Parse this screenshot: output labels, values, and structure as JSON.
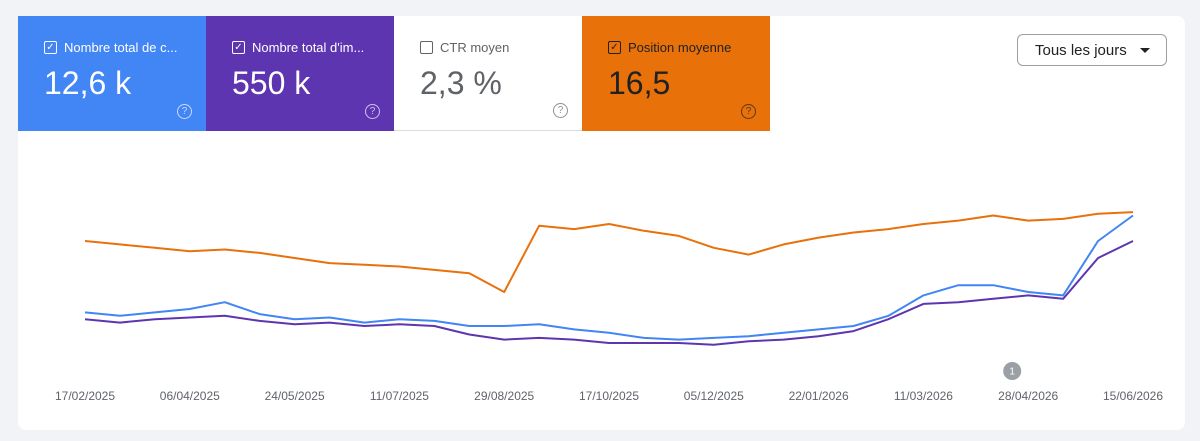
{
  "cards": [
    {
      "label": "Nombre total de c...",
      "value": "12,6 k",
      "checked": true,
      "color": "#4285f4",
      "text_color": "#ffffff"
    },
    {
      "label": "Nombre total d'im...",
      "value": "550 k",
      "checked": true,
      "color": "#5e35b1",
      "text_color": "#ffffff"
    },
    {
      "label": "CTR moyen",
      "value": "2,3 %",
      "checked": false,
      "color": "#ffffff",
      "text_color": "#5f6368"
    },
    {
      "label": "Position moyenne",
      "value": "16,5",
      "checked": true,
      "color": "#e8710a",
      "text_color": "#202124"
    }
  ],
  "filter": "Tous les jours",
  "chart_data": {
    "type": "line",
    "categories": [
      "17/02/2025",
      null,
      null,
      "06/04/2025",
      null,
      null,
      "24/05/2025",
      null,
      null,
      "11/07/2025",
      null,
      null,
      "29/08/2025",
      null,
      null,
      "17/10/2025",
      null,
      null,
      "05/12/2025",
      null,
      null,
      "22/01/2026",
      null,
      null,
      "11/03/2026",
      null,
      null,
      "28/04/2026",
      null,
      null,
      "15/06/2026"
    ],
    "ylim": [
      0,
      100
    ],
    "series": [
      {
        "color": "#e8710a",
        "values": [
          70,
          68,
          66,
          64,
          65,
          63,
          60,
          57,
          56,
          55,
          53,
          51,
          40,
          79,
          77,
          80,
          76,
          73,
          66,
          62,
          68,
          72,
          75,
          77,
          80,
          82,
          85,
          82,
          83,
          86,
          87
        ]
      },
      {
        "color": "#4285f4",
        "values": [
          28,
          26,
          28,
          30,
          34,
          27,
          24,
          25,
          22,
          24,
          23,
          20,
          20,
          21,
          18,
          16,
          13,
          12,
          13,
          14,
          16,
          18,
          20,
          26,
          38,
          44,
          44,
          40,
          38,
          70,
          85
        ]
      },
      {
        "color": "#5e35b1",
        "values": [
          24,
          22,
          24,
          25,
          26,
          23,
          21,
          22,
          20,
          21,
          20,
          15,
          12,
          13,
          12,
          10,
          10,
          10,
          9,
          11,
          12,
          14,
          17,
          24,
          33,
          34,
          36,
          38,
          36,
          60,
          70
        ]
      }
    ],
    "annotations": [
      {
        "text": "1",
        "x": 27
      }
    ]
  }
}
